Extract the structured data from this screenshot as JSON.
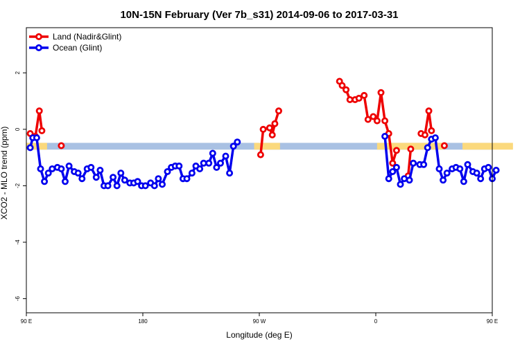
{
  "chart_data": {
    "type": "line",
    "title": "10N-15N February (Ver 7b_s31)   2014-09-06 to 2017-03-31",
    "xlabel": "Longitude (deg E)",
    "ylabel": "XCO2 - MLO trend (ppm)",
    "xlim": [
      90,
      450
    ],
    "ylim": [
      -6.5,
      3.6
    ],
    "x_ticks": [
      {
        "value": 90,
        "label": "90 E"
      },
      {
        "value": 180,
        "label": "180"
      },
      {
        "value": 270,
        "label": "90 W"
      },
      {
        "value": 360,
        "label": "0"
      },
      {
        "value": 450,
        "label": "90 E"
      },
      {
        "value": 540,
        "label": "180"
      }
    ],
    "y_ticks": [
      {
        "value": 2,
        "label": "2"
      },
      {
        "value": 0,
        "label": "0"
      },
      {
        "value": -2,
        "label": "-2"
      },
      {
        "value": -4,
        "label": "-4"
      },
      {
        "value": -6,
        "label": "-6"
      }
    ],
    "grid": false,
    "legend_position": "top-left",
    "band": {
      "y_min": -0.72,
      "y_max": -0.48,
      "color": "#a9c1e3",
      "highlight_color": "#fbd97d",
      "highlight_x_ranges": [
        [
          90,
          106
        ],
        [
          266,
          286
        ],
        [
          361,
          412
        ],
        [
          427,
          466
        ]
      ]
    },
    "series": [
      {
        "name": "Land (Nadir&Glint)",
        "color": "#ee0000",
        "segments": [
          [
            [
              93,
              -0.15
            ],
            [
              97,
              -0.25
            ],
            [
              100,
              0.65
            ],
            [
              102,
              -0.05
            ]
          ],
          [
            [
              117,
              -0.58
            ]
          ],
          [
            [
              271,
              -0.9
            ],
            [
              273,
              0.0
            ],
            [
              278,
              0.05
            ],
            [
              280,
              -0.2
            ],
            [
              282,
              0.2
            ],
            [
              285,
              0.65
            ]
          ],
          [
            [
              332,
              1.7
            ],
            [
              334,
              1.55
            ],
            [
              337,
              1.4
            ],
            [
              340,
              1.05
            ],
            [
              344,
              1.05
            ],
            [
              347,
              1.1
            ],
            [
              351,
              1.2
            ],
            [
              354,
              0.35
            ],
            [
              358,
              0.45
            ],
            [
              361,
              0.3
            ],
            [
              364,
              1.3
            ],
            [
              367,
              0.3
            ],
            [
              370,
              -0.15
            ],
            [
              373,
              -1.2
            ],
            [
              376,
              -0.75
            ]
          ],
          [
            [
              385,
              -1.65
            ],
            [
              387,
              -0.7
            ]
          ],
          [
            [
              395,
              -0.15
            ],
            [
              398,
              -0.2
            ],
            [
              401,
              0.65
            ],
            [
              403,
              -0.05
            ]
          ],
          [
            [
              413,
              -0.58
            ]
          ]
        ]
      },
      {
        "name": "Ocean (Glint)",
        "color": "#0000ee",
        "segments": [
          [
            [
              93,
              -0.65
            ],
            [
              95,
              -0.3
            ],
            [
              98,
              -0.3
            ],
            [
              101,
              -1.4
            ],
            [
              104,
              -1.85
            ],
            [
              107,
              -1.55
            ],
            [
              110,
              -1.4
            ],
            [
              114,
              -1.35
            ],
            [
              117,
              -1.4
            ],
            [
              120,
              -1.85
            ],
            [
              123,
              -1.3
            ],
            [
              127,
              -1.5
            ],
            [
              130,
              -1.55
            ],
            [
              133,
              -1.75
            ],
            [
              137,
              -1.4
            ],
            [
              140,
              -1.35
            ],
            [
              144,
              -1.7
            ],
            [
              147,
              -1.45
            ],
            [
              150,
              -2.0
            ],
            [
              153,
              -2.0
            ],
            [
              157,
              -1.7
            ],
            [
              160,
              -2.0
            ],
            [
              163,
              -1.55
            ],
            [
              166,
              -1.8
            ],
            [
              170,
              -1.9
            ],
            [
              173,
              -1.9
            ],
            [
              176,
              -1.85
            ],
            [
              179,
              -2.0
            ],
            [
              182,
              -2.0
            ],
            [
              186,
              -1.9
            ],
            [
              189,
              -2.0
            ],
            [
              192,
              -1.75
            ],
            [
              195,
              -1.95
            ],
            [
              199,
              -1.5
            ],
            [
              202,
              -1.35
            ],
            [
              205,
              -1.3
            ],
            [
              208,
              -1.3
            ],
            [
              211,
              -1.75
            ],
            [
              214,
              -1.75
            ],
            [
              218,
              -1.55
            ],
            [
              221,
              -1.3
            ],
            [
              224,
              -1.4
            ],
            [
              227,
              -1.2
            ],
            [
              231,
              -1.2
            ],
            [
              234,
              -0.85
            ],
            [
              237,
              -1.35
            ],
            [
              240,
              -1.2
            ],
            [
              244,
              -0.95
            ],
            [
              247,
              -1.55
            ],
            [
              250,
              -0.6
            ],
            [
              253,
              -0.45
            ]
          ],
          [
            [
              367,
              -0.25
            ],
            [
              370,
              -1.75
            ],
            [
              373,
              -1.5
            ],
            [
              376,
              -1.35
            ],
            [
              379,
              -1.95
            ],
            [
              382,
              -1.75
            ],
            [
              386,
              -1.8
            ],
            [
              389,
              -1.2
            ]
          ],
          [
            [
              394,
              -1.25
            ],
            [
              397,
              -1.25
            ],
            [
              400,
              -0.65
            ],
            [
              403,
              -0.35
            ],
            [
              406,
              -0.3
            ],
            [
              409,
              -1.4
            ],
            [
              412,
              -1.8
            ],
            [
              415,
              -1.55
            ],
            [
              419,
              -1.4
            ],
            [
              422,
              -1.35
            ],
            [
              425,
              -1.4
            ],
            [
              428,
              -1.85
            ],
            [
              431,
              -1.25
            ],
            [
              435,
              -1.5
            ],
            [
              438,
              -1.55
            ],
            [
              441,
              -1.75
            ],
            [
              444,
              -1.4
            ],
            [
              447,
              -1.35
            ],
            [
              450,
              -1.75
            ],
            [
              453,
              -1.45
            ]
          ]
        ]
      }
    ]
  }
}
